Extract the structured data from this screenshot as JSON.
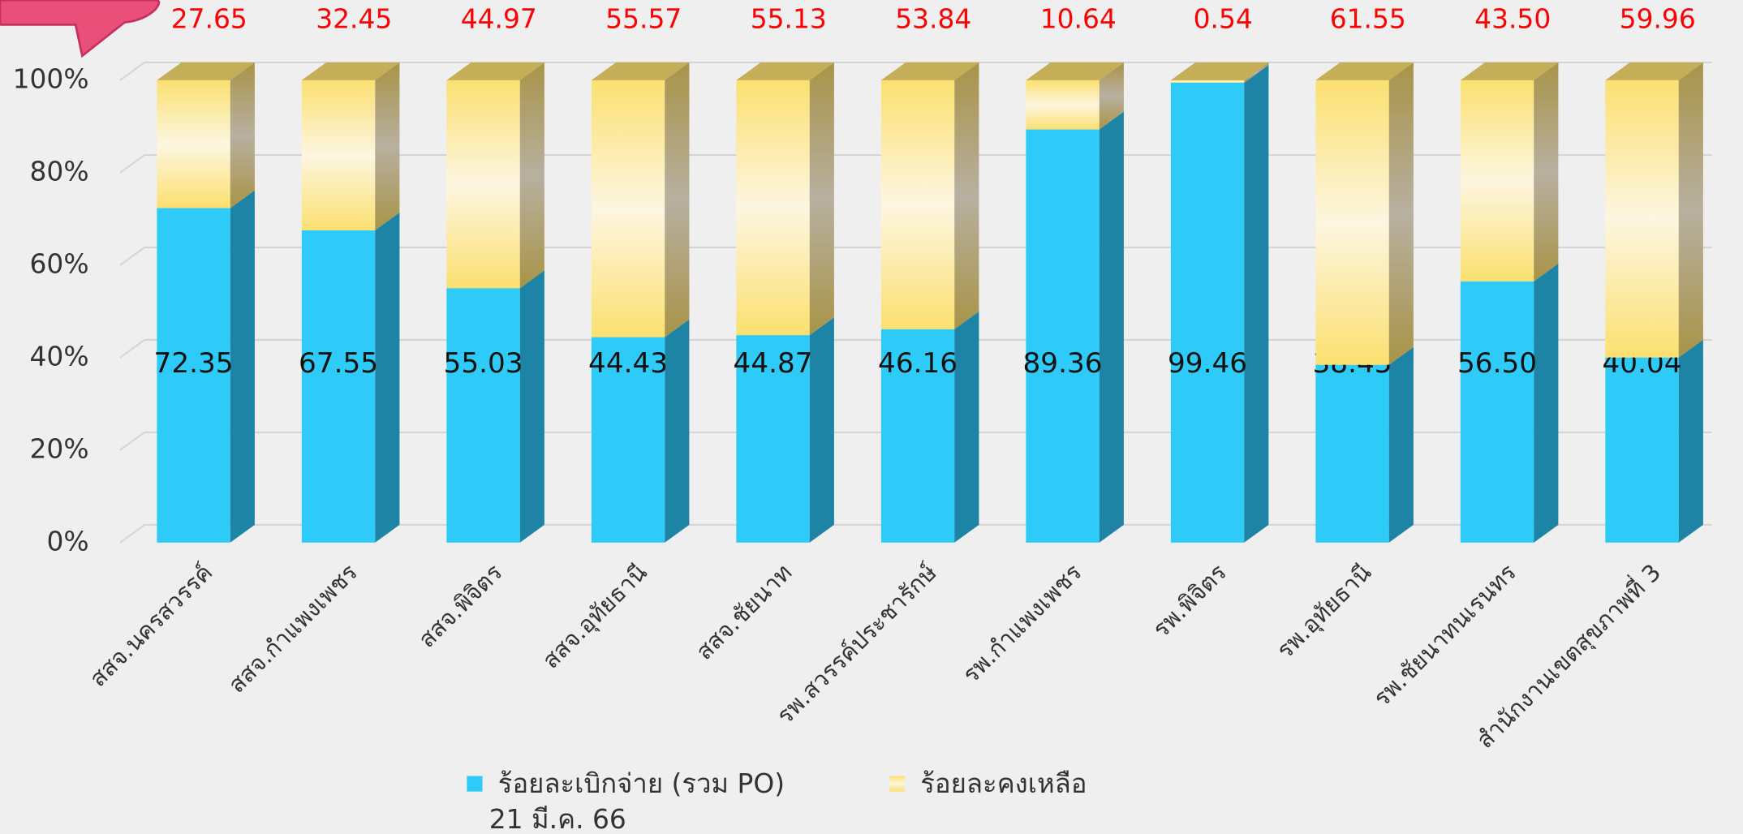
{
  "chart_data": {
    "type": "bar",
    "stacked": true,
    "categories": [
      "สสจ.นครสวรรค์",
      "สสจ.กำแพงเพชร",
      "สสจ.พิจิตร",
      "สสจ.อุทัยธานี",
      "สสจ.ชัยนาท",
      "รพ.สวรรค์ประชารักษ์",
      "รพ.กำแพงเพชร",
      "รพ.พิจิตร",
      "รพ.อุทัยธานี",
      "รพ.ชัยนาทนเรนทร",
      "สำนักงานเขตสุขภาพที่ 3"
    ],
    "series": [
      {
        "name": "ร้อยละเบิกจ่าย (รวม PO)",
        "color": "#2ecbf8",
        "values": [
          72.35,
          67.55,
          55.03,
          44.43,
          44.87,
          46.16,
          89.36,
          99.46,
          38.45,
          56.5,
          40.04
        ],
        "value_labels": [
          "72.35",
          "67.55",
          "55.03",
          "44.43",
          "44.87",
          "46.16",
          "89.36",
          "99.46",
          "38.45",
          "56.50",
          "40.04"
        ]
      },
      {
        "name": "ร้อยละคงเหลือ",
        "color": "#fbe27a",
        "values": [
          27.65,
          32.45,
          44.97,
          55.57,
          55.13,
          53.84,
          10.64,
          0.54,
          61.55,
          43.5,
          59.96
        ],
        "value_labels": [
          "27.65",
          "32.45",
          "44.97",
          "55.57",
          "55.13",
          "53.84",
          "10.64",
          "0.54",
          "61.55",
          "43.50",
          "59.96"
        ]
      }
    ],
    "note": "21 มี.ค. 66",
    "ylim": [
      0,
      100
    ],
    "yticks": [
      {
        "value": 0,
        "label": "0%"
      },
      {
        "value": 20,
        "label": "20%"
      },
      {
        "value": 40,
        "label": "40%"
      },
      {
        "value": 60,
        "label": "60%"
      },
      {
        "value": 80,
        "label": "80%"
      },
      {
        "value": 100,
        "label": "100%"
      }
    ],
    "grid": true
  }
}
